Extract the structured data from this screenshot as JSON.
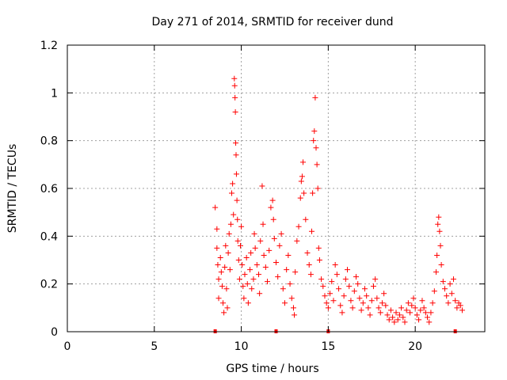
{
  "chart_data": {
    "type": "scatter",
    "title": "Day 271 of 2014, SRMTID for receiver dund",
    "xlabel": "GPS time / hours",
    "ylabel": "SRMTID / TECUs",
    "xlim": [
      0,
      24
    ],
    "ylim": [
      0,
      1.2
    ],
    "xticks": [
      0,
      5,
      10,
      15,
      20
    ],
    "yticks": [
      0,
      0.2,
      0.4,
      0.6,
      0.8,
      1,
      1.2
    ],
    "xtick_labels": [
      "0",
      "5",
      "10",
      "15",
      "20"
    ],
    "ytick_labels": [
      "0",
      "0.2",
      "0.4",
      "0.6",
      "0.8",
      "1",
      "1.2"
    ],
    "grid": true,
    "marker": "+",
    "color": "#ff0000",
    "series": [
      {
        "name": "SRMTID",
        "points": [
          [
            8.5,
            0.52
          ],
          [
            8.6,
            0.43
          ],
          [
            8.6,
            0.35
          ],
          [
            8.65,
            0.28
          ],
          [
            8.7,
            0.22
          ],
          [
            8.7,
            0.14
          ],
          [
            8.8,
            0.31
          ],
          [
            8.85,
            0.25
          ],
          [
            8.9,
            0.19
          ],
          [
            8.95,
            0.12
          ],
          [
            9.0,
            0.08
          ],
          [
            9.05,
            0.27
          ],
          [
            9.1,
            0.36
          ],
          [
            9.15,
            0.18
          ],
          [
            9.2,
            0.1
          ],
          [
            9.25,
            0.33
          ],
          [
            9.3,
            0.41
          ],
          [
            9.35,
            0.26
          ],
          [
            9.4,
            0.45
          ],
          [
            9.45,
            0.58
          ],
          [
            9.5,
            0.62
          ],
          [
            9.55,
            0.49
          ],
          [
            9.6,
            1.06
          ],
          [
            9.62,
            1.03
          ],
          [
            9.64,
            0.98
          ],
          [
            9.66,
            0.92
          ],
          [
            9.68,
            0.79
          ],
          [
            9.7,
            0.74
          ],
          [
            9.72,
            0.66
          ],
          [
            9.75,
            0.55
          ],
          [
            9.78,
            0.47
          ],
          [
            9.8,
            0.38
          ],
          [
            9.85,
            0.3
          ],
          [
            9.9,
            0.22
          ],
          [
            9.95,
            0.36
          ],
          [
            10.0,
            0.44
          ],
          [
            10.05,
            0.28
          ],
          [
            10.1,
            0.19
          ],
          [
            10.15,
            0.14
          ],
          [
            10.2,
            0.24
          ],
          [
            10.3,
            0.31
          ],
          [
            10.35,
            0.2
          ],
          [
            10.4,
            0.12
          ],
          [
            10.5,
            0.26
          ],
          [
            10.55,
            0.33
          ],
          [
            10.6,
            0.18
          ],
          [
            10.7,
            0.22
          ],
          [
            10.75,
            0.41
          ],
          [
            10.8,
            0.35
          ],
          [
            10.9,
            0.28
          ],
          [
            11.0,
            0.24
          ],
          [
            11.05,
            0.16
          ],
          [
            11.1,
            0.38
          ],
          [
            11.2,
            0.61
          ],
          [
            11.25,
            0.45
          ],
          [
            11.3,
            0.32
          ],
          [
            11.4,
            0.27
          ],
          [
            11.5,
            0.21
          ],
          [
            11.6,
            0.34
          ],
          [
            11.7,
            0.52
          ],
          [
            11.8,
            0.55
          ],
          [
            11.85,
            0.47
          ],
          [
            11.9,
            0.39
          ],
          [
            12.0,
            0.29
          ],
          [
            12.1,
            0.23
          ],
          [
            12.2,
            0.36
          ],
          [
            12.3,
            0.41
          ],
          [
            12.4,
            0.18
          ],
          [
            12.5,
            0.12
          ],
          [
            12.6,
            0.26
          ],
          [
            12.7,
            0.32
          ],
          [
            12.8,
            0.2
          ],
          [
            12.9,
            0.14
          ],
          [
            13.0,
            0.1
          ],
          [
            13.05,
            0.07
          ],
          [
            13.1,
            0.25
          ],
          [
            13.2,
            0.38
          ],
          [
            13.3,
            0.44
          ],
          [
            13.4,
            0.56
          ],
          [
            13.45,
            0.63
          ],
          [
            13.5,
            0.65
          ],
          [
            13.55,
            0.71
          ],
          [
            13.6,
            0.58
          ],
          [
            13.7,
            0.47
          ],
          [
            13.8,
            0.33
          ],
          [
            13.9,
            0.28
          ],
          [
            14.0,
            0.24
          ],
          [
            14.05,
            0.42
          ],
          [
            14.1,
            0.58
          ],
          [
            14.15,
            0.8
          ],
          [
            14.2,
            0.84
          ],
          [
            14.25,
            0.98
          ],
          [
            14.3,
            0.77
          ],
          [
            14.35,
            0.7
          ],
          [
            14.4,
            0.6
          ],
          [
            14.45,
            0.35
          ],
          [
            14.5,
            0.3
          ],
          [
            14.6,
            0.22
          ],
          [
            14.7,
            0.19
          ],
          [
            14.8,
            0.15
          ],
          [
            14.9,
            0.12
          ],
          [
            15.0,
            0.1
          ],
          [
            15.1,
            0.16
          ],
          [
            15.2,
            0.21
          ],
          [
            15.3,
            0.13
          ],
          [
            15.4,
            0.28
          ],
          [
            15.5,
            0.24
          ],
          [
            15.6,
            0.18
          ],
          [
            15.7,
            0.11
          ],
          [
            15.8,
            0.08
          ],
          [
            15.9,
            0.15
          ],
          [
            16.0,
            0.22
          ],
          [
            16.1,
            0.26
          ],
          [
            16.2,
            0.19
          ],
          [
            16.3,
            0.13
          ],
          [
            16.4,
            0.1
          ],
          [
            16.5,
            0.17
          ],
          [
            16.6,
            0.23
          ],
          [
            16.7,
            0.2
          ],
          [
            16.8,
            0.14
          ],
          [
            16.9,
            0.09
          ],
          [
            17.0,
            0.12
          ],
          [
            17.1,
            0.18
          ],
          [
            17.2,
            0.15
          ],
          [
            17.3,
            0.1
          ],
          [
            17.4,
            0.07
          ],
          [
            17.5,
            0.13
          ],
          [
            17.6,
            0.19
          ],
          [
            17.7,
            0.22
          ],
          [
            17.8,
            0.14
          ],
          [
            17.9,
            0.1
          ],
          [
            18.0,
            0.08
          ],
          [
            18.1,
            0.12
          ],
          [
            18.2,
            0.16
          ],
          [
            18.3,
            0.11
          ],
          [
            18.4,
            0.07
          ],
          [
            18.5,
            0.05
          ],
          [
            18.6,
            0.09
          ],
          [
            18.7,
            0.06
          ],
          [
            18.8,
            0.04
          ],
          [
            18.9,
            0.08
          ],
          [
            19.0,
            0.05
          ],
          [
            19.1,
            0.07
          ],
          [
            19.2,
            0.1
          ],
          [
            19.3,
            0.06
          ],
          [
            19.4,
            0.04
          ],
          [
            19.5,
            0.09
          ],
          [
            19.6,
            0.12
          ],
          [
            19.7,
            0.08
          ],
          [
            19.8,
            0.11
          ],
          [
            19.9,
            0.14
          ],
          [
            20.0,
            0.1
          ],
          [
            20.1,
            0.07
          ],
          [
            20.2,
            0.05
          ],
          [
            20.3,
            0.09
          ],
          [
            20.4,
            0.13
          ],
          [
            20.5,
            0.1
          ],
          [
            20.6,
            0.08
          ],
          [
            20.7,
            0.06
          ],
          [
            20.8,
            0.04
          ],
          [
            20.9,
            0.08
          ],
          [
            21.0,
            0.12
          ],
          [
            21.1,
            0.17
          ],
          [
            21.2,
            0.25
          ],
          [
            21.25,
            0.32
          ],
          [
            21.3,
            0.45
          ],
          [
            21.35,
            0.48
          ],
          [
            21.4,
            0.42
          ],
          [
            21.45,
            0.36
          ],
          [
            21.5,
            0.28
          ],
          [
            21.6,
            0.21
          ],
          [
            21.7,
            0.18
          ],
          [
            21.8,
            0.15
          ],
          [
            21.9,
            0.12
          ],
          [
            22.0,
            0.2
          ],
          [
            22.1,
            0.16
          ],
          [
            22.2,
            0.22
          ],
          [
            22.3,
            0.13
          ],
          [
            22.4,
            0.1
          ],
          [
            22.5,
            0.12
          ],
          [
            22.6,
            0.11
          ],
          [
            22.7,
            0.09
          ]
        ]
      }
    ],
    "gap_markers": [
      8.5,
      12.0,
      15.0,
      22.3
    ]
  }
}
